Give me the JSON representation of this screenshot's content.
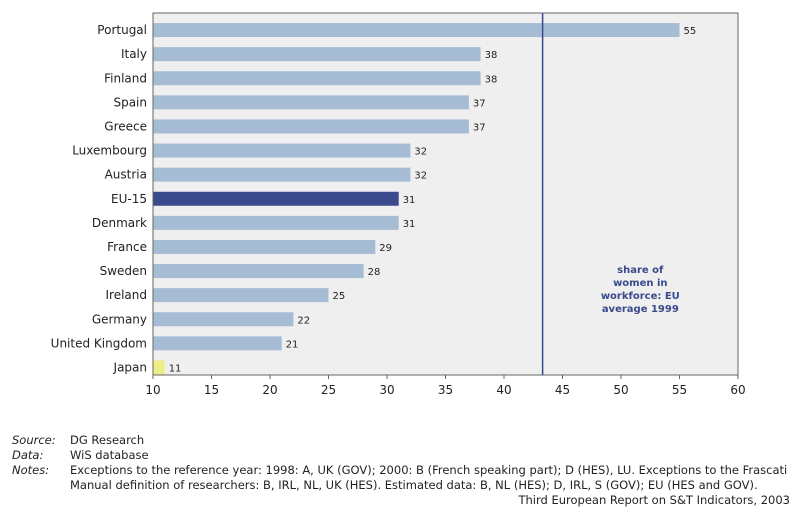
{
  "chart_data": {
    "type": "bar",
    "orientation": "horizontal",
    "categories": [
      "Portugal",
      "Italy",
      "Finland",
      "Spain",
      "Greece",
      "Luxembourg",
      "Austria",
      "EU-15",
      "Denmark",
      "France",
      "Sweden",
      "Ireland",
      "Germany",
      "United Kingdom",
      "Japan"
    ],
    "values": [
      55,
      38,
      38,
      37,
      37,
      32,
      32,
      31,
      31,
      29,
      28,
      25,
      22,
      21,
      11
    ],
    "xlim": [
      10,
      60
    ],
    "xticks": [
      10,
      15,
      20,
      25,
      30,
      35,
      40,
      45,
      50,
      55,
      60
    ],
    "grid": false,
    "colors": {
      "default": "#a6bcd5",
      "EU-15": "#3a4a8c",
      "Japan": "#eeee88",
      "plot_background": "#efefef",
      "reference_line": "#3a4a8c"
    },
    "reference_line": {
      "value": 43.3,
      "label_lines": [
        "share of",
        "women in",
        "workforce: EU",
        "average 1999"
      ]
    }
  },
  "footer": {
    "source_key": "Source:",
    "source_value": "DG Research",
    "data_key": "Data:",
    "data_value": "WiS database",
    "notes_key": "Notes:",
    "notes_line1": "Exceptions to the reference year: 1998: A, UK (GOV); 2000: B (French speaking part); D (HES), LU. Exceptions to the Frascati",
    "notes_line2": "Manual definition of researchers: B, IRL, NL, UK (HES). Estimated data: B, NL (HES); D, IRL, S (GOV); EU (HES and GOV).",
    "credit": "Third European Report on S&T Indicators, 2003"
  }
}
